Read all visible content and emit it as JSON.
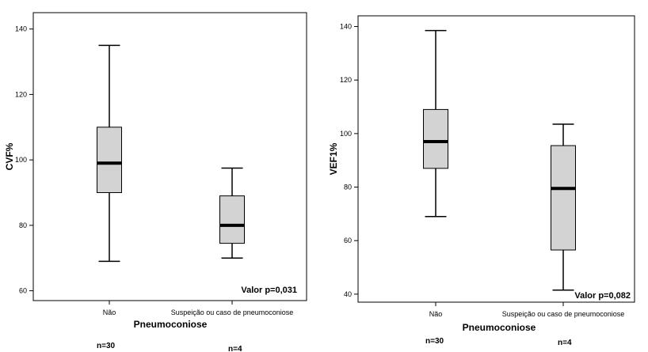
{
  "chart_data": [
    {
      "type": "boxplot",
      "title": "",
      "xlabel": "Pneumoconiose",
      "ylabel": "CVF%",
      "ylim": [
        57,
        145
      ],
      "yticks": [
        60,
        80,
        100,
        120,
        140
      ],
      "categories": [
        "Não",
        "Suspeição ou caso de pneumoconiose"
      ],
      "n_labels": [
        "n=30",
        "n=4"
      ],
      "boxes": [
        {
          "whisker_low": 69,
          "q1": 90,
          "median": 99,
          "q3": 110,
          "whisker_high": 135
        },
        {
          "whisker_low": 70,
          "q1": 74.5,
          "median": 80,
          "q3": 89,
          "whisker_high": 97.5
        }
      ],
      "annotation": "Valor p=0,031"
    },
    {
      "type": "boxplot",
      "title": "",
      "xlabel": "Pneumoconiose",
      "ylabel": "VEF1%",
      "ylim": [
        37,
        144
      ],
      "yticks": [
        40,
        60,
        80,
        100,
        120,
        140
      ],
      "categories": [
        "Não",
        "Suspeição ou caso de pneumoconiose"
      ],
      "n_labels": [
        "n=30",
        "n=4"
      ],
      "boxes": [
        {
          "whisker_low": 69,
          "q1": 87,
          "median": 97,
          "q3": 109,
          "whisker_high": 138.5
        },
        {
          "whisker_low": 41.5,
          "q1": 56.5,
          "median": 79.5,
          "q3": 95.5,
          "whisker_high": 103.5
        }
      ],
      "annotation": "Valor p=0,082"
    }
  ]
}
